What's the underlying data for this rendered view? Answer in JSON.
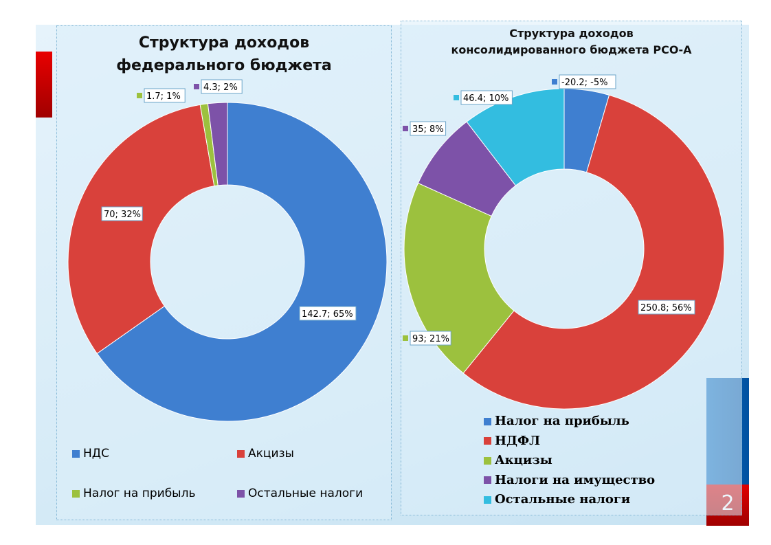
{
  "page_number": "2",
  "chart_data": [
    {
      "type": "pie",
      "donut": true,
      "title": "Структура доходов федерального бюджета",
      "categories": [
        "НДС",
        "Акцизы",
        "Налог на прибыль",
        "Остальные налоги"
      ],
      "values": [
        142.7,
        70,
        1.7,
        4.3
      ],
      "data_labels": [
        "142.7; 65%",
        "70; 32%",
        "1.7; 1%",
        "4.3; 2%"
      ],
      "colors": [
        "#3f7fd0",
        "#d9413b",
        "#9cc13e",
        "#7d52a8"
      ],
      "legend": "bottom"
    },
    {
      "type": "pie",
      "donut": true,
      "title": "Структура доходов консолидированного бюджета РСО-А",
      "categories": [
        "Налог на прибыль",
        "НДФЛ",
        "Акцизы",
        "Налоги на имущество",
        "Остальные налоги"
      ],
      "values": [
        -20.2,
        250.8,
        93,
        35,
        46.4
      ],
      "data_labels": [
        "-20.2; -5%",
        "250.8; 56%",
        "93; 21%",
        "35; 8%",
        "46.4; 10%"
      ],
      "colors": [
        "#3f7fd0",
        "#d9413b",
        "#9cc13e",
        "#7d52a8",
        "#33bde0"
      ],
      "legend": "bottom"
    }
  ]
}
